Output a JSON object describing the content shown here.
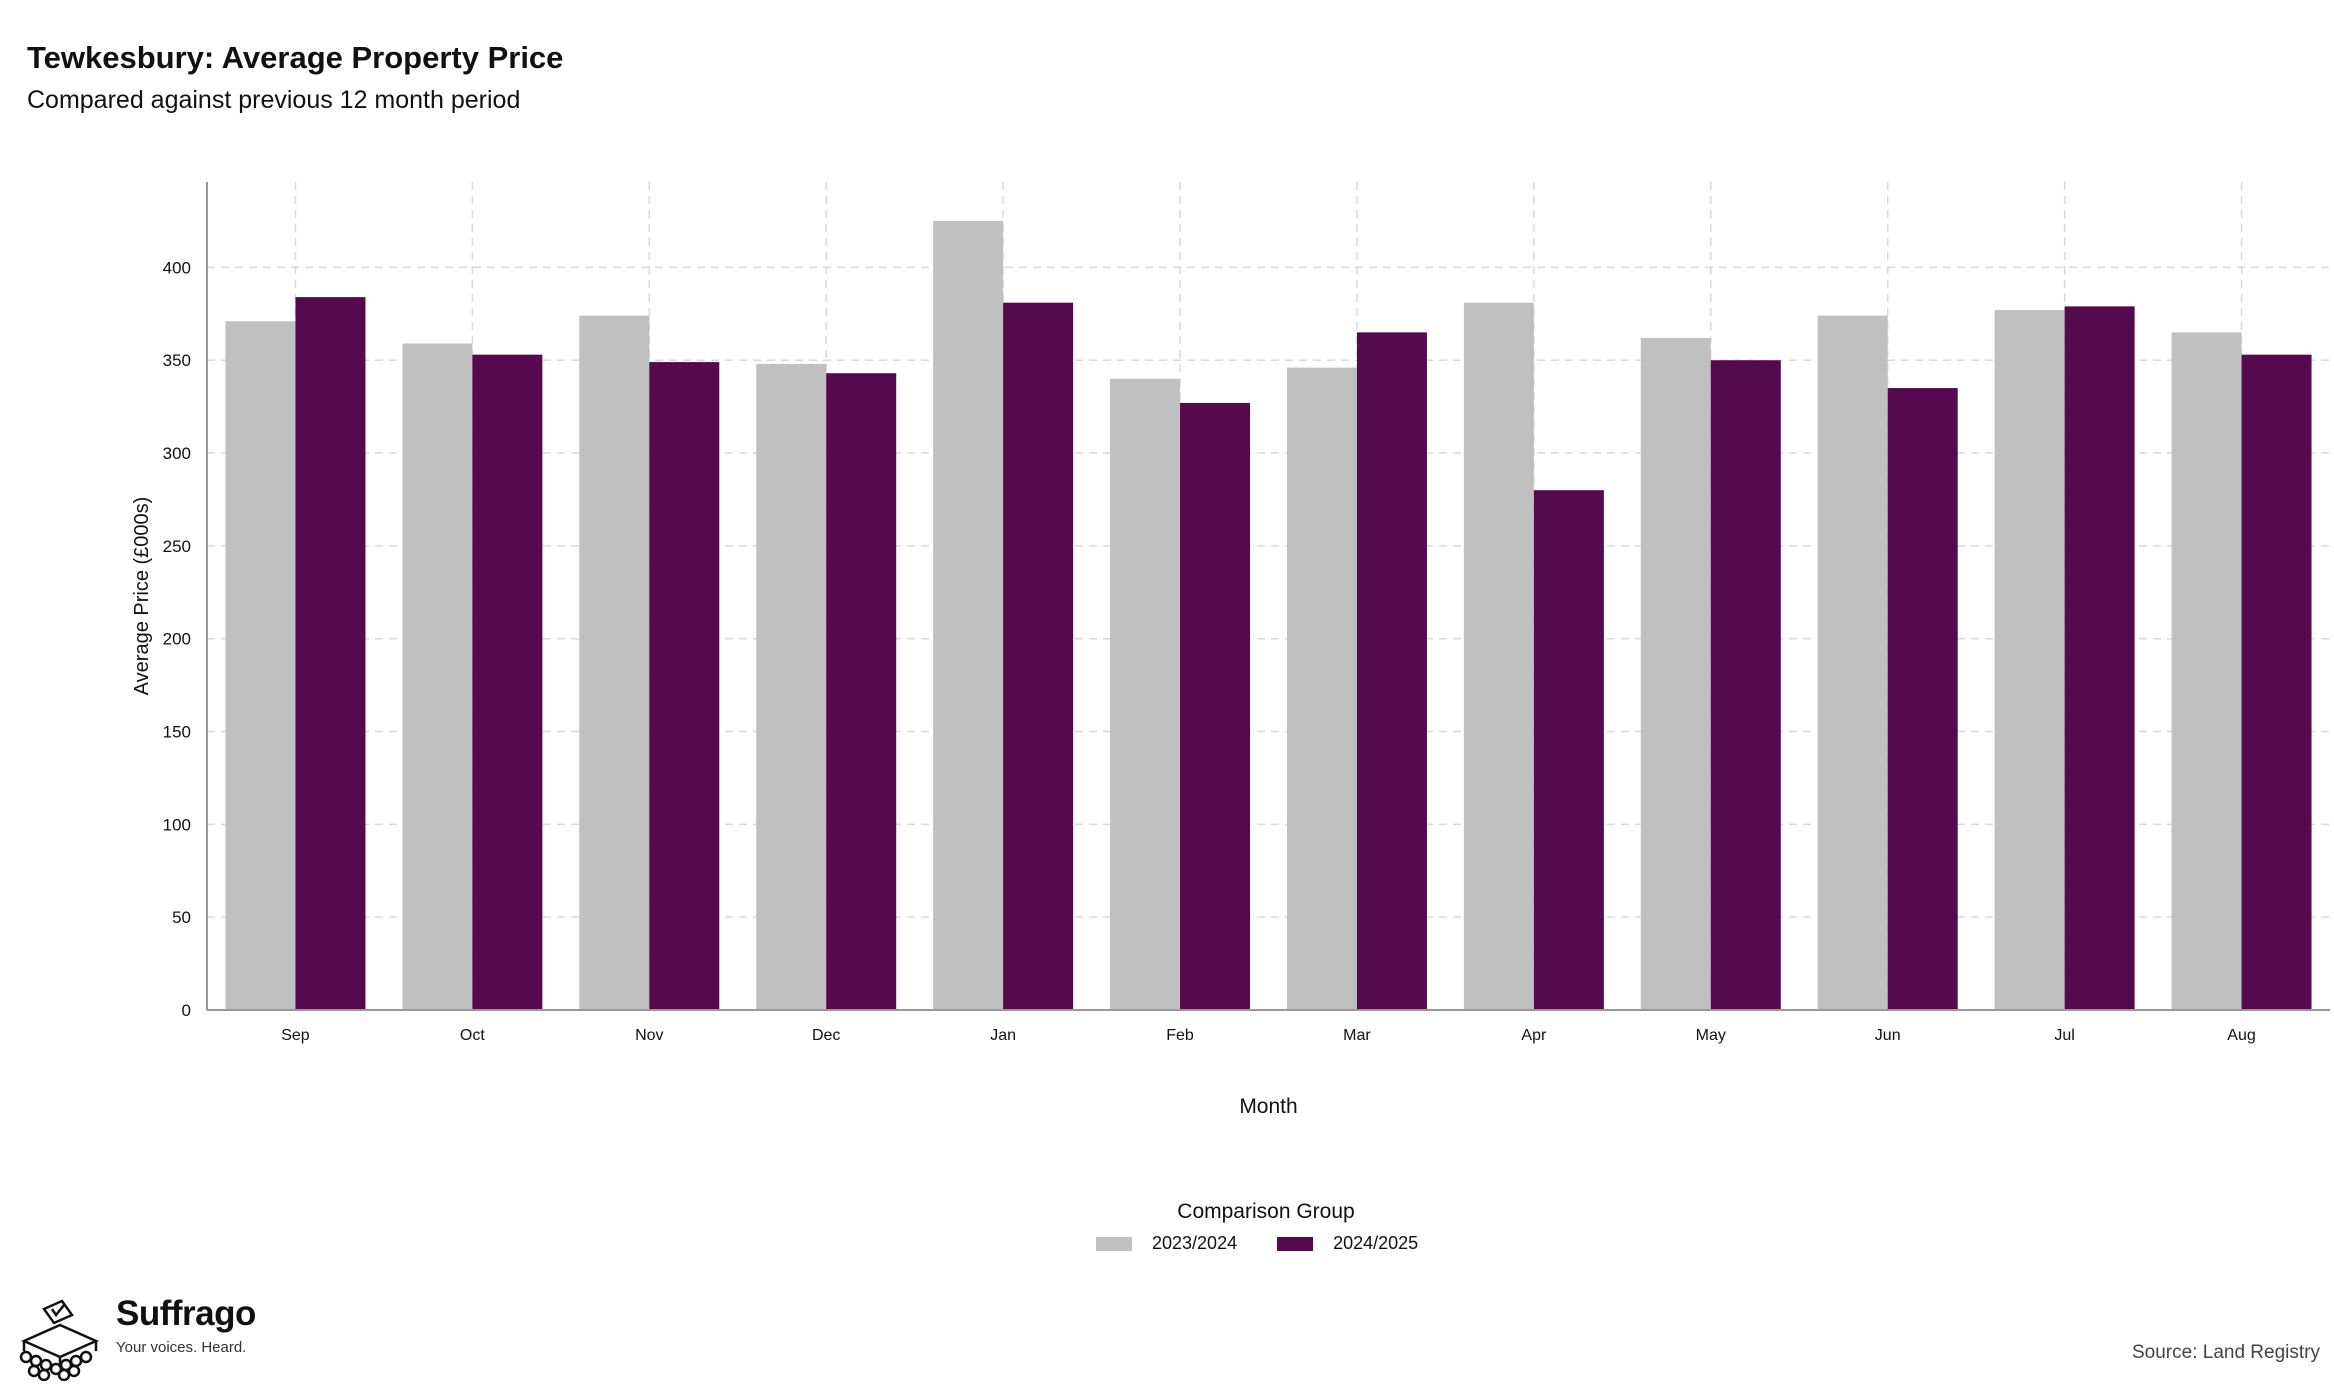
{
  "title": "Tewkesbury: Average Property Price",
  "subtitle": "Compared against previous 12 month period",
  "legend": {
    "title": "Comparison Group",
    "items": [
      {
        "label": "2023/2024",
        "color": "#c0c0c0"
      },
      {
        "label": "2024/2025",
        "color": "#550a50"
      }
    ]
  },
  "brand": {
    "name": "Suffrago",
    "tagline": "Your voices. Heard.",
    "icon": "ballot-box-icon"
  },
  "source": "Source: Land Registry",
  "chart_data": {
    "type": "bar",
    "xlabel": "Month",
    "ylabel": "Average Price (£000s)",
    "ylim": [
      0,
      446
    ],
    "yticks": [
      0,
      50,
      100,
      150,
      200,
      250,
      300,
      350,
      400
    ],
    "grid": true,
    "legend_position": "bottom",
    "categories": [
      "Sep",
      "Oct",
      "Nov",
      "Dec",
      "Jan",
      "Feb",
      "Mar",
      "Apr",
      "May",
      "Jun",
      "Jul",
      "Aug"
    ],
    "series": [
      {
        "name": "2023/2024",
        "color": "#c0c0c0",
        "values": [
          371,
          359,
          374,
          348,
          425,
          340,
          346,
          381,
          362,
          374,
          377,
          365
        ]
      },
      {
        "name": "2024/2025",
        "color": "#550a50",
        "values": [
          384,
          353,
          349,
          343,
          381,
          327,
          365,
          280,
          350,
          335,
          379,
          353
        ]
      }
    ]
  }
}
